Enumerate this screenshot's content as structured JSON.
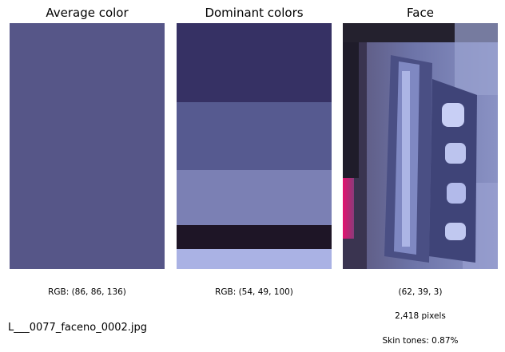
{
  "panels": {
    "average": {
      "title": "Average color",
      "color": "#565688",
      "caption": "RGB: (86, 86, 136)"
    },
    "dominant": {
      "title": "Dominant colors",
      "caption": "RGB: (54, 49, 100)",
      "swatches": [
        {
          "color": "#363164",
          "share": 0.323
        },
        {
          "color": "#565a90",
          "share": 0.276
        },
        {
          "color": "#7b80b4",
          "share": 0.224
        },
        {
          "color": "#1e1526",
          "share": 0.097
        },
        {
          "color": "#aab2e4",
          "share": 0.08
        }
      ]
    },
    "face": {
      "title": "Face",
      "caption_rgb": "(62, 39, 3)",
      "caption_pixels": "2,418 pixels",
      "caption_skin": "Skin tones: 0.87%"
    }
  },
  "filename": "L___0077_faceno_0002.jpg"
}
